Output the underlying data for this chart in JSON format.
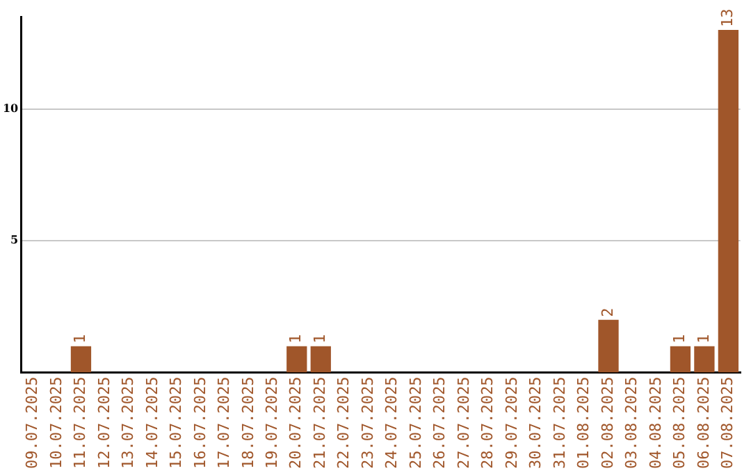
{
  "chart_data": {
    "type": "bar",
    "categories": [
      "09.07.2025",
      "10.07.2025",
      "11.07.2025",
      "12.07.2025",
      "13.07.2025",
      "14.07.2025",
      "15.07.2025",
      "16.07.2025",
      "17.07.2025",
      "18.07.2025",
      "19.07.2025",
      "20.07.2025",
      "21.07.2025",
      "22.07.2025",
      "23.07.2025",
      "24.07.2025",
      "25.07.2025",
      "26.07.2025",
      "27.07.2025",
      "28.07.2025",
      "29.07.2025",
      "30.07.2025",
      "31.07.2025",
      "01.08.2025",
      "02.08.2025",
      "03.08.2025",
      "04.08.2025",
      "05.08.2025",
      "06.08.2025",
      "07.08.2025"
    ],
    "values": [
      0,
      0,
      1,
      0,
      0,
      0,
      0,
      0,
      0,
      0,
      0,
      1,
      1,
      0,
      0,
      0,
      0,
      0,
      0,
      0,
      0,
      0,
      0,
      0,
      2,
      0,
      0,
      1,
      1,
      13
    ],
    "value_labels": [
      null,
      null,
      "1",
      null,
      null,
      null,
      null,
      null,
      null,
      null,
      null,
      "1",
      "1",
      null,
      null,
      null,
      null,
      null,
      null,
      null,
      null,
      null,
      null,
      null,
      "2",
      null,
      null,
      "1",
      "1",
      "13"
    ],
    "color": "#a0562a",
    "ylim": [
      0,
      13.5
    ],
    "yticks": [
      5,
      10
    ],
    "grid": "y",
    "legend": false
  }
}
